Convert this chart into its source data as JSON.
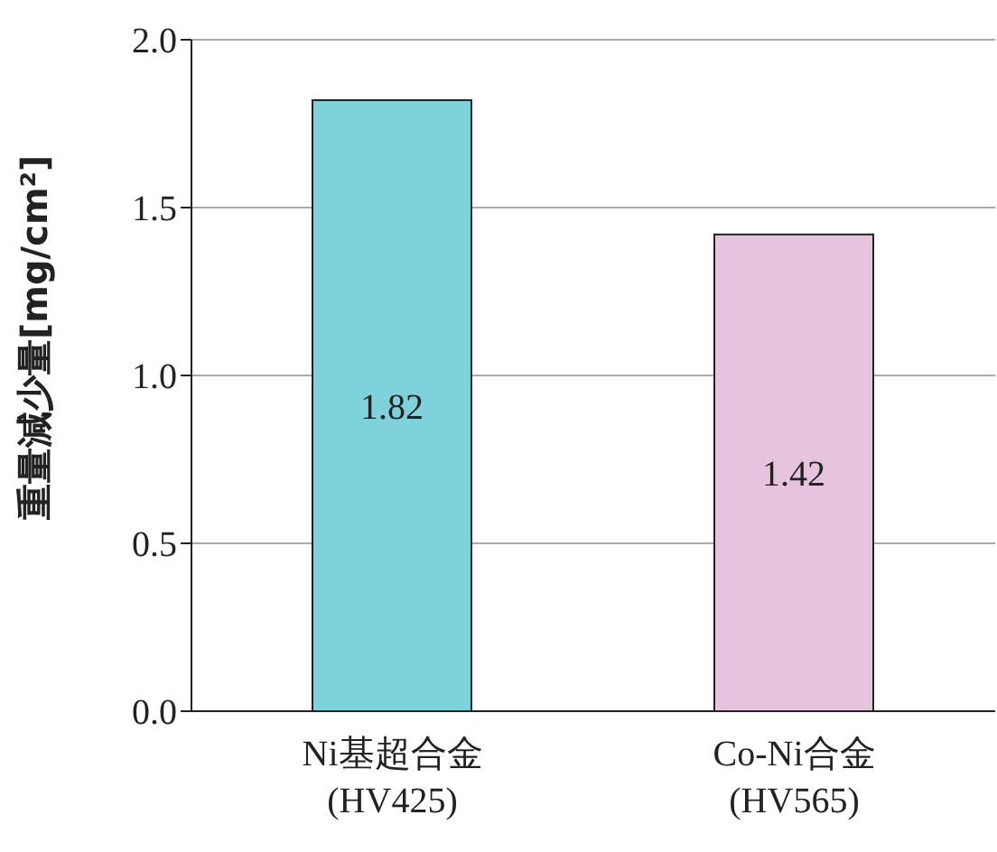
{
  "chart_data": {
    "type": "bar",
    "ylabel": "重量減少量[mg/cm²]",
    "categories": [
      "Ni基超合金\n(HV425)",
      "Co-Ni合金\n(HV565)"
    ],
    "values": [
      1.82,
      1.42
    ],
    "colors": [
      "#7fd1dc",
      "#e6c4de"
    ],
    "ylim": [
      0,
      2
    ],
    "yticks": [
      {
        "value": 0,
        "label": "0.0"
      },
      {
        "value": 0.5,
        "label": "0.5"
      },
      {
        "value": 1,
        "label": "1.0"
      },
      {
        "value": 1.5,
        "label": "1.5"
      },
      {
        "value": 2,
        "label": "2.0"
      }
    ],
    "grid": "y",
    "data_labels": true
  }
}
